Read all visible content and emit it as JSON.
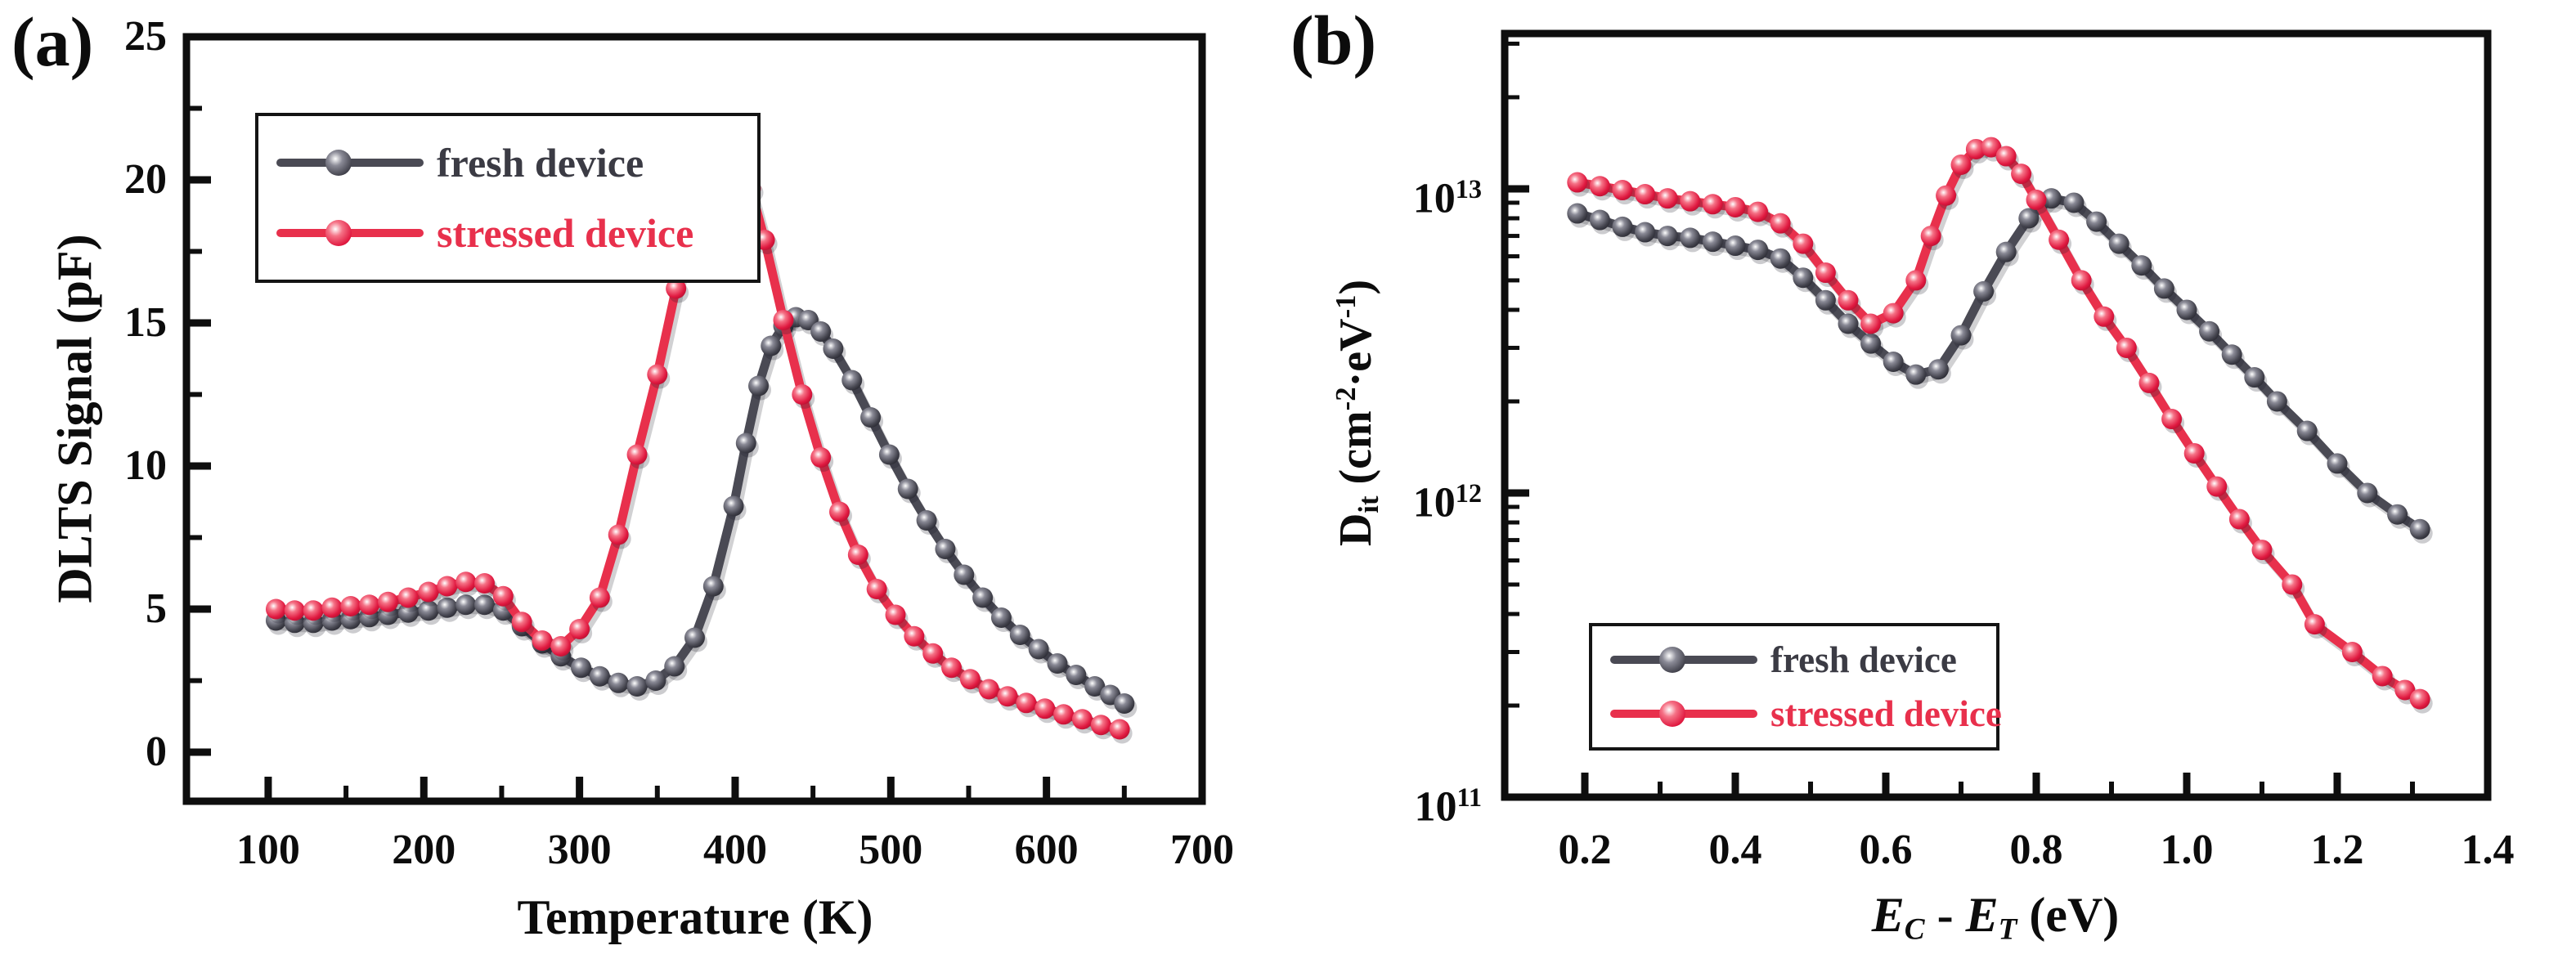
{
  "figure_bg": "#ffffff",
  "colors": {
    "axis": "#0e0e0e",
    "fresh_line": "#4a4a54",
    "fresh_ball_hi": "#8a8a96",
    "fresh_ball_mid": "#44444e",
    "fresh_ball_dark": "#23232b",
    "fresh_text": "#3b3b44",
    "stressed_line": "#e8304c",
    "stressed_ball_hi": "#f57286",
    "stressed_ball_mid": "#e01940",
    "stressed_ball_dark": "#ad0e2d",
    "stressed_text": "#e8304c"
  },
  "chart_data": [
    {
      "id": "a",
      "tag": "(a)",
      "type": "line",
      "x_axis": {
        "label": "Temperature (K)",
        "range": [
          47.5,
          700
        ],
        "major_ticks": [
          100,
          200,
          300,
          400,
          500,
          600,
          700
        ],
        "major_tick_labels": [
          "100",
          "200",
          "300",
          "400",
          "500",
          "600",
          "700"
        ],
        "minor_ticks": [
          150,
          250,
          350,
          450,
          550,
          650
        ],
        "scale": "linear",
        "grid": "off"
      },
      "y_axis": {
        "label": "DLTS Signal (pF)",
        "range": [
          -1.714,
          25
        ],
        "major_ticks": [
          0,
          5,
          10,
          15,
          20,
          25
        ],
        "major_tick_labels": [
          "0",
          "5",
          "10",
          "15",
          "20",
          "25"
        ],
        "minor_ticks": [
          2.5,
          7.5,
          12.5,
          17.5,
          22.5
        ],
        "scale": "linear",
        "grid": "off"
      },
      "legend": {
        "position": "upper-left",
        "items": [
          {
            "label": "fresh device",
            "series": "fresh"
          },
          {
            "label": "stressed device",
            "series": "stressed"
          }
        ]
      },
      "series": [
        {
          "name": "fresh device",
          "key": "fresh",
          "points": [
            [
              105,
              4.6
            ],
            [
              117,
              4.52
            ],
            [
              129,
              4.52
            ],
            [
              141,
              4.6
            ],
            [
              153,
              4.65
            ],
            [
              165,
              4.72
            ],
            [
              177,
              4.8
            ],
            [
              190,
              4.88
            ],
            [
              203,
              4.95
            ],
            [
              215,
              5.05
            ],
            [
              227,
              5.15
            ],
            [
              239,
              5.15
            ],
            [
              251,
              4.95
            ],
            [
              263,
              4.4
            ],
            [
              276,
              3.8
            ],
            [
              288,
              3.35
            ],
            [
              301,
              2.95
            ],
            [
              313,
              2.65
            ],
            [
              325,
              2.42
            ],
            [
              337,
              2.3
            ],
            [
              349,
              2.5
            ],
            [
              361,
              3.0
            ],
            [
              374,
              4.0
            ],
            [
              386,
              5.8
            ],
            [
              399,
              8.6
            ],
            [
              407,
              10.8
            ],
            [
              415,
              12.8
            ],
            [
              423,
              14.2
            ],
            [
              431,
              14.9
            ],
            [
              439,
              15.2
            ],
            [
              447,
              15.1
            ],
            [
              455,
              14.7
            ],
            [
              463,
              14.1
            ],
            [
              475,
              13.0
            ],
            [
              487,
              11.7
            ],
            [
              499,
              10.4
            ],
            [
              511,
              9.2
            ],
            [
              523,
              8.1
            ],
            [
              535,
              7.1
            ],
            [
              547,
              6.2
            ],
            [
              559,
              5.4
            ],
            [
              571,
              4.7
            ],
            [
              583,
              4.1
            ],
            [
              595,
              3.6
            ],
            [
              607,
              3.1
            ],
            [
              619,
              2.7
            ],
            [
              631,
              2.3
            ],
            [
              641,
              2.0
            ],
            [
              650,
              1.7
            ]
          ]
        },
        {
          "name": "stressed device",
          "key": "stressed",
          "points": [
            [
              105,
              5.0
            ],
            [
              117,
              4.95
            ],
            [
              129,
              4.95
            ],
            [
              141,
              5.05
            ],
            [
              153,
              5.1
            ],
            [
              165,
              5.15
            ],
            [
              177,
              5.25
            ],
            [
              190,
              5.4
            ],
            [
              203,
              5.6
            ],
            [
              215,
              5.8
            ],
            [
              227,
              5.95
            ],
            [
              239,
              5.9
            ],
            [
              251,
              5.45
            ],
            [
              263,
              4.55
            ],
            [
              276,
              3.9
            ],
            [
              288,
              3.7
            ],
            [
              300,
              4.3
            ],
            [
              313,
              5.4
            ],
            [
              325,
              7.6
            ],
            [
              337,
              10.4
            ],
            [
              350,
              13.2
            ],
            [
              362,
              16.2
            ],
            [
              374,
              18.6
            ],
            [
              386,
              19.9
            ],
            [
              395,
              20.4
            ],
            [
              402,
              20.3
            ],
            [
              410,
              19.7
            ],
            [
              419,
              17.9
            ],
            [
              431,
              15.1
            ],
            [
              443,
              12.5
            ],
            [
              455,
              10.3
            ],
            [
              467,
              8.4
            ],
            [
              479,
              6.9
            ],
            [
              491,
              5.7
            ],
            [
              503,
              4.8
            ],
            [
              515,
              4.05
            ],
            [
              527,
              3.45
            ],
            [
              539,
              2.95
            ],
            [
              551,
              2.55
            ],
            [
              563,
              2.2
            ],
            [
              575,
              1.95
            ],
            [
              587,
              1.72
            ],
            [
              599,
              1.52
            ],
            [
              611,
              1.32
            ],
            [
              623,
              1.15
            ],
            [
              635,
              0.95
            ],
            [
              647,
              0.8
            ]
          ]
        }
      ]
    },
    {
      "id": "b",
      "tag": "(b)",
      "type": "line",
      "x_axis": {
        "label_rich": [
          [
            "i",
            "E"
          ],
          [
            "subi",
            "C"
          ],
          [
            "n",
            " - "
          ],
          [
            "i",
            "E"
          ],
          [
            "subi",
            "T"
          ],
          [
            "n",
            " (eV)"
          ]
        ],
        "label_plain": "EC - ET (eV)",
        "range": [
          0.0935,
          1.4
        ],
        "major_ticks": [
          0.2,
          0.4,
          0.6,
          0.8,
          1.0,
          1.2,
          1.4
        ],
        "major_tick_labels": [
          "0.2",
          "0.4",
          "0.6",
          "0.8",
          "1.0",
          "1.2",
          "1.4"
        ],
        "minor_ticks": [
          0.3,
          0.5,
          0.7,
          0.9,
          1.1,
          1.3
        ],
        "scale": "linear",
        "grid": "off"
      },
      "y_axis": {
        "label_rich": [
          [
            "n",
            "D"
          ],
          [
            "sub",
            "it"
          ],
          [
            "n",
            " (cm"
          ],
          [
            "sup",
            "-2"
          ],
          [
            "n",
            "·eV"
          ],
          [
            "sup",
            "-1"
          ],
          [
            "n",
            ")"
          ]
        ],
        "label_plain": "Dit (cm-2·eV-1)",
        "range": [
          100000000000.0,
          32400000000000.0
        ],
        "major_ticks": [
          10000000000000.0,
          1000000000000.0,
          100000000000.0
        ],
        "major_tick_exponents": [
          "13",
          "12",
          "11"
        ],
        "scale": "log",
        "grid": "off"
      },
      "legend": {
        "position": "lower-middle",
        "items": [
          {
            "label": "fresh device",
            "series": "fresh"
          },
          {
            "label": "stressed device",
            "series": "stressed"
          }
        ]
      },
      "series": [
        {
          "name": "fresh device",
          "key": "fresh",
          "points": [
            [
              0.19,
              8300000000000.0
            ],
            [
              0.22,
              7900000000000.0
            ],
            [
              0.25,
              7500000000000.0
            ],
            [
              0.28,
              7200000000000.0
            ],
            [
              0.31,
              7000000000000.0
            ],
            [
              0.34,
              6900000000000.0
            ],
            [
              0.37,
              6700000000000.0
            ],
            [
              0.4,
              6500000000000.0
            ],
            [
              0.43,
              6300000000000.0
            ],
            [
              0.46,
              5900000000000.0
            ],
            [
              0.49,
              5100000000000.0
            ],
            [
              0.52,
              4300000000000.0
            ],
            [
              0.55,
              3600000000000.0
            ],
            [
              0.58,
              3100000000000.0
            ],
            [
              0.61,
              2700000000000.0
            ],
            [
              0.64,
              2450000000000.0
            ],
            [
              0.67,
              2550000000000.0
            ],
            [
              0.7,
              3300000000000.0
            ],
            [
              0.73,
              4600000000000.0
            ],
            [
              0.76,
              6200000000000.0
            ],
            [
              0.79,
              8000000000000.0
            ],
            [
              0.82,
              9300000000000.0
            ],
            [
              0.85,
              9000000000000.0
            ],
            [
              0.88,
              7800000000000.0
            ],
            [
              0.91,
              6600000000000.0
            ],
            [
              0.94,
              5600000000000.0
            ],
            [
              0.97,
              4700000000000.0
            ],
            [
              1.0,
              4000000000000.0
            ],
            [
              1.03,
              3400000000000.0
            ],
            [
              1.06,
              2850000000000.0
            ],
            [
              1.09,
              2400000000000.0
            ],
            [
              1.12,
              2000000000000.0
            ],
            [
              1.16,
              1600000000000.0
            ],
            [
              1.2,
              1250000000000.0
            ],
            [
              1.24,
              1000000000000.0
            ],
            [
              1.28,
              850000000000.0
            ],
            [
              1.31,
              760000000000.0
            ]
          ]
        },
        {
          "name": "stressed device",
          "key": "stressed",
          "points": [
            [
              0.19,
              10500000000000.0
            ],
            [
              0.22,
              10200000000000.0
            ],
            [
              0.25,
              9900000000000.0
            ],
            [
              0.28,
              9600000000000.0
            ],
            [
              0.31,
              9300000000000.0
            ],
            [
              0.34,
              9100000000000.0
            ],
            [
              0.37,
              8900000000000.0
            ],
            [
              0.4,
              8700000000000.0
            ],
            [
              0.43,
              8400000000000.0
            ],
            [
              0.46,
              7700000000000.0
            ],
            [
              0.49,
              6600000000000.0
            ],
            [
              0.52,
              5300000000000.0
            ],
            [
              0.55,
              4300000000000.0
            ],
            [
              0.58,
              3600000000000.0
            ],
            [
              0.61,
              3900000000000.0
            ],
            [
              0.64,
              5000000000000.0
            ],
            [
              0.66,
              7000000000000.0
            ],
            [
              0.68,
              9500000000000.0
            ],
            [
              0.7,
              12000000000000.0
            ],
            [
              0.72,
              13500000000000.0
            ],
            [
              0.74,
              13700000000000.0
            ],
            [
              0.76,
              12800000000000.0
            ],
            [
              0.78,
              11200000000000.0
            ],
            [
              0.8,
              9200000000000.0
            ],
            [
              0.83,
              6800000000000.0
            ],
            [
              0.86,
              5000000000000.0
            ],
            [
              0.89,
              3800000000000.0
            ],
            [
              0.92,
              3000000000000.0
            ],
            [
              0.95,
              2300000000000.0
            ],
            [
              0.98,
              1750000000000.0
            ],
            [
              1.01,
              1350000000000.0
            ],
            [
              1.04,
              1050000000000.0
            ],
            [
              1.07,
              820000000000.0
            ],
            [
              1.1,
              650000000000.0
            ],
            [
              1.14,
              500000000000.0
            ],
            [
              1.17,
              370000000000.0
            ],
            [
              1.22,
              300000000000.0
            ],
            [
              1.26,
              250000000000.0
            ],
            [
              1.29,
              225000000000.0
            ],
            [
              1.31,
              210000000000.0
            ]
          ]
        }
      ]
    }
  ]
}
